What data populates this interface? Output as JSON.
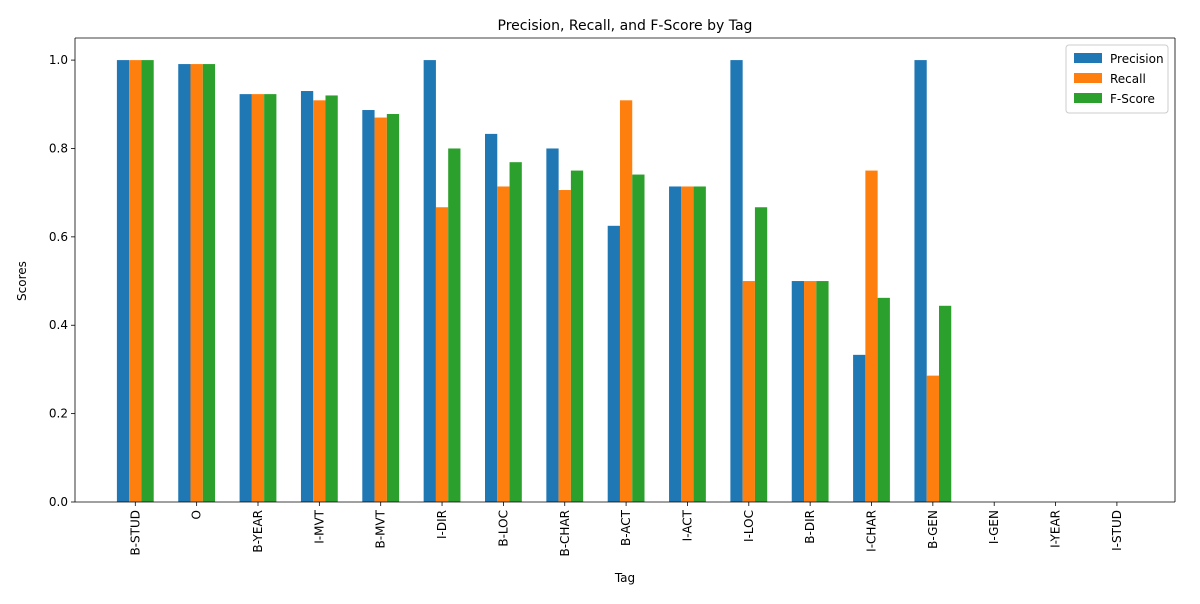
{
  "chart_data": {
    "type": "bar",
    "title": "Precision, Recall, and F-Score by Tag",
    "xlabel": "Tag",
    "ylabel": "Scores",
    "ylim": [
      0,
      1.05
    ],
    "yticks": [
      "0.0",
      "0.2",
      "0.4",
      "0.6",
      "0.8",
      "1.0"
    ],
    "categories": [
      "B-STUD",
      "O",
      "B-YEAR",
      "I-MVT",
      "B-MVT",
      "I-DIR",
      "B-LOC",
      "B-CHAR",
      "B-ACT",
      "I-ACT",
      "I-LOC",
      "B-DIR",
      "I-CHAR",
      "B-GEN",
      "I-GEN",
      "I-YEAR",
      "I-STUD"
    ],
    "series": [
      {
        "name": "Precision",
        "color": "#1f77b4",
        "values": [
          1.0,
          0.991,
          0.923,
          0.93,
          0.887,
          1.0,
          0.833,
          0.8,
          0.625,
          0.714,
          1.0,
          0.5,
          0.333,
          1.0,
          0,
          0,
          0
        ]
      },
      {
        "name": "Recall",
        "color": "#ff7f0e",
        "values": [
          1.0,
          0.991,
          0.923,
          0.909,
          0.87,
          0.667,
          0.714,
          0.706,
          0.909,
          0.714,
          0.5,
          0.5,
          0.75,
          0.286,
          0,
          0,
          0
        ]
      },
      {
        "name": "F-Score",
        "color": "#2ca02c",
        "values": [
          1.0,
          0.991,
          0.923,
          0.92,
          0.878,
          0.8,
          0.769,
          0.75,
          0.741,
          0.714,
          0.667,
          0.5,
          0.462,
          0.444,
          0,
          0,
          0
        ]
      }
    ],
    "legend_position": "top-right",
    "grid": false
  }
}
